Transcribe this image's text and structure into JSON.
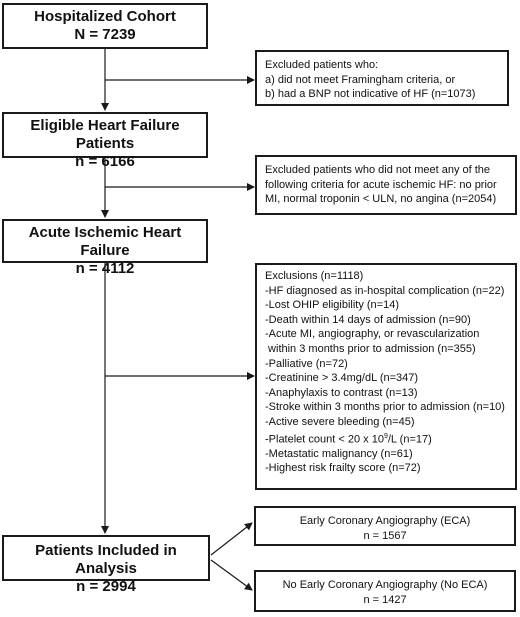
{
  "boxes": {
    "cohort": {
      "title": "Hospitalized Cohort",
      "n": "N = 7239"
    },
    "exclusion1": {
      "lines": [
        "Excluded patients who:",
        "a) did not meet Framingham criteria, or",
        "b) had a BNP not indicative of HF (n=1073)"
      ]
    },
    "eligible": {
      "title": "Eligible Heart Failure Patients",
      "n": "n = 6166"
    },
    "exclusion2": {
      "lines": [
        "Excluded patients who did not meet any of the",
        "following criteria for acute ischemic HF: no prior",
        "MI, normal troponin < ULN, no angina (n=2054)"
      ]
    },
    "ischemic": {
      "title": "Acute Ischemic Heart Failure",
      "n": "n = 4112"
    },
    "exclusion3": {
      "lines": [
        "Exclusions (n=1118)",
        "-HF diagnosed as in-hospital complication (n=22)",
        "-Lost OHIP eligibility (n=14)",
        "-Death within 14 days of admission (n=90)",
        "-Acute MI, angiography, or revascularization",
        " within 3 months prior to admission (n=355)",
        "-Palliative (n=72)",
        "-Creatinine > 3.4mg/dL (n=347)",
        "-Anaphylaxis to contrast (n=13)",
        "-Stroke within 3 months prior to admission (n=10)",
        "-Active severe bleeding (n=45)"
      ],
      "platelet_pre": "-Platelet count < 20 x 10",
      "platelet_sup": "9",
      "platelet_post": "/L (n=17)",
      "lines_after": [
        "-Metastatic malignancy (n=61)",
        "-Highest risk frailty score (n=72)"
      ]
    },
    "included": {
      "title": "Patients Included in Analysis",
      "n": "n = 2994"
    },
    "eca": {
      "title": "Early Coronary Angiography (ECA)",
      "n": "n = 1567"
    },
    "no_eca": {
      "title": "No Early Coronary Angiography (No ECA)",
      "n": "n = 1427"
    }
  }
}
